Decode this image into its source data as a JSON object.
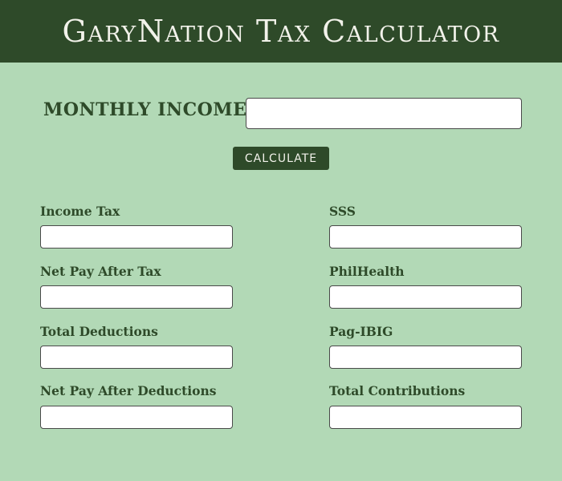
{
  "header": {
    "title": "GaryNation Tax Calculator"
  },
  "income": {
    "label": "MONTHLY INCOME:",
    "value": ""
  },
  "calculate_button": {
    "label": "CALCULATE"
  },
  "left_fields": [
    {
      "label": "Income Tax",
      "value": ""
    },
    {
      "label": "Net Pay After Tax",
      "value": ""
    },
    {
      "label": "Total Deductions",
      "value": ""
    },
    {
      "label": "Net Pay After Deductions",
      "value": ""
    }
  ],
  "right_fields": [
    {
      "label": "SSS",
      "value": ""
    },
    {
      "label": "PhilHealth",
      "value": ""
    },
    {
      "label": "Pag-IBIG",
      "value": ""
    },
    {
      "label": "Total Contributions",
      "value": ""
    }
  ],
  "colors": {
    "header_bg": "#2e4a29",
    "page_bg": "#b2d9b6",
    "accent_text": "#2e4a29",
    "header_text": "#f2f2ea"
  }
}
